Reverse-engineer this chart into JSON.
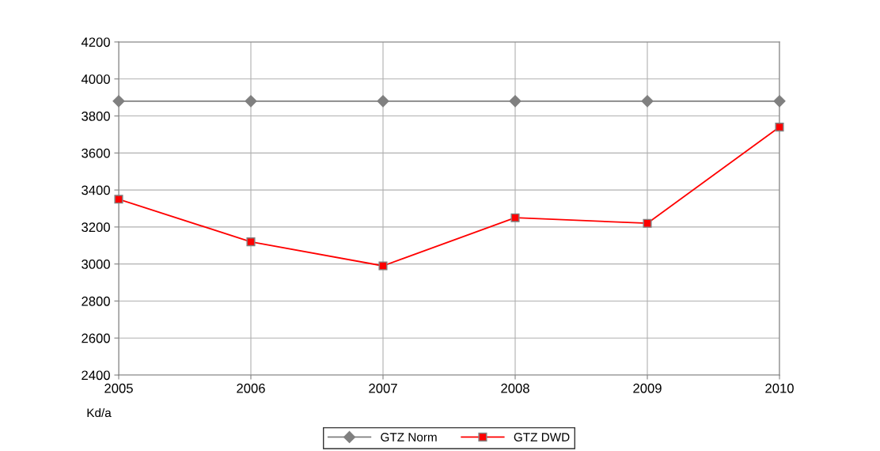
{
  "chart_data": {
    "type": "line",
    "ylabel": "Kd/a",
    "x": [
      2005,
      2006,
      2007,
      2008,
      2009,
      2010
    ],
    "series": [
      {
        "name": "GTZ Norm",
        "color": "#808080",
        "marker": "diamond",
        "values": [
          3880,
          3880,
          3880,
          3880,
          3880,
          3880
        ]
      },
      {
        "name": "GTZ DWD",
        "color": "#ff0000",
        "marker": "square",
        "values": [
          3350,
          3120,
          2990,
          3250,
          3220,
          3740
        ]
      }
    ],
    "xlim": [
      2005,
      2010
    ],
    "xticks": [
      2005,
      2006,
      2007,
      2008,
      2009,
      2010
    ],
    "ylim": [
      2400,
      4200
    ],
    "yticks": [
      2400,
      2600,
      2800,
      3000,
      3200,
      3400,
      3600,
      3800,
      4000,
      4200
    ],
    "grid": true,
    "legend": "bottom",
    "line_style": "solid"
  }
}
